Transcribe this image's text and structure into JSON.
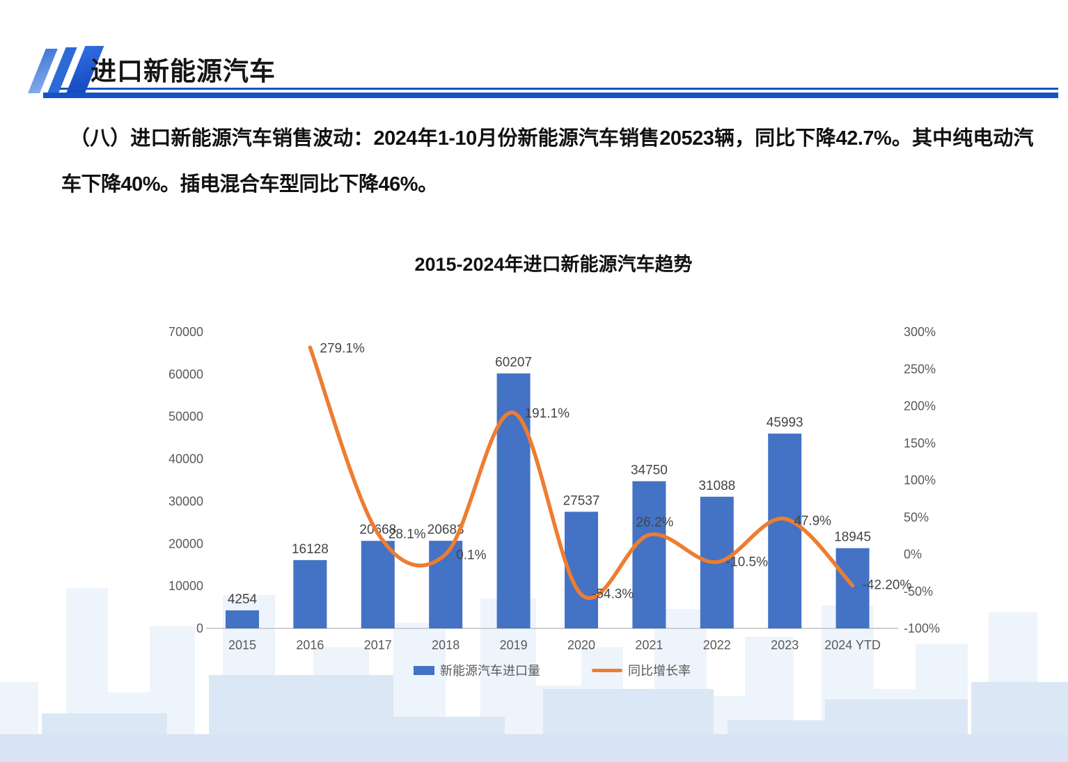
{
  "header": {
    "title": "进口新能源汽车"
  },
  "body_text": {
    "paragraph": "（八）进口新能源汽车销售波动：2024年1-10月份新能源汽车销售20523辆，同比下降42.7%。其中纯电动汽车下降40%。插电混合车型同比下降46%。"
  },
  "chart_data": {
    "type": "bar",
    "title": "2015-2024年进口新能源汽车趋势",
    "categories": [
      "2015",
      "2016",
      "2017",
      "2018",
      "2019",
      "2020",
      "2021",
      "2022",
      "2023",
      "2024 YTD"
    ],
    "series": [
      {
        "name": "新能源汽车进口量",
        "type": "bar",
        "color": "#4472C4",
        "values": [
          4254,
          16128,
          20668,
          20683,
          60207,
          27537,
          34750,
          31088,
          45993,
          18945
        ]
      },
      {
        "name": "同比增长率",
        "type": "line",
        "color": "#ED7D31",
        "values": [
          null,
          279.1,
          28.1,
          0.1,
          191.1,
          -54.3,
          26.2,
          -10.5,
          47.9,
          -42.2
        ],
        "point_labels": [
          null,
          "279.1%",
          "28.1%",
          "0.1%",
          "191.1%",
          "-54.3%",
          "26.2%",
          "-10.5%",
          "47.9%",
          "-42.20%"
        ]
      }
    ],
    "left_axis": {
      "min": 0,
      "max": 70000,
      "step": 10000,
      "ticks": [
        "0",
        "10000",
        "20000",
        "30000",
        "40000",
        "50000",
        "60000",
        "70000"
      ]
    },
    "right_axis": {
      "min": -100,
      "max": 300,
      "step": 50,
      "ticks": [
        "-100%",
        "-50%",
        "0%",
        "50%",
        "100%",
        "150%",
        "200%",
        "250%",
        "300%"
      ]
    },
    "legend": [
      "新能源汽车进口量",
      "同比增长率"
    ],
    "grid": false,
    "legend_position": "bottom"
  }
}
